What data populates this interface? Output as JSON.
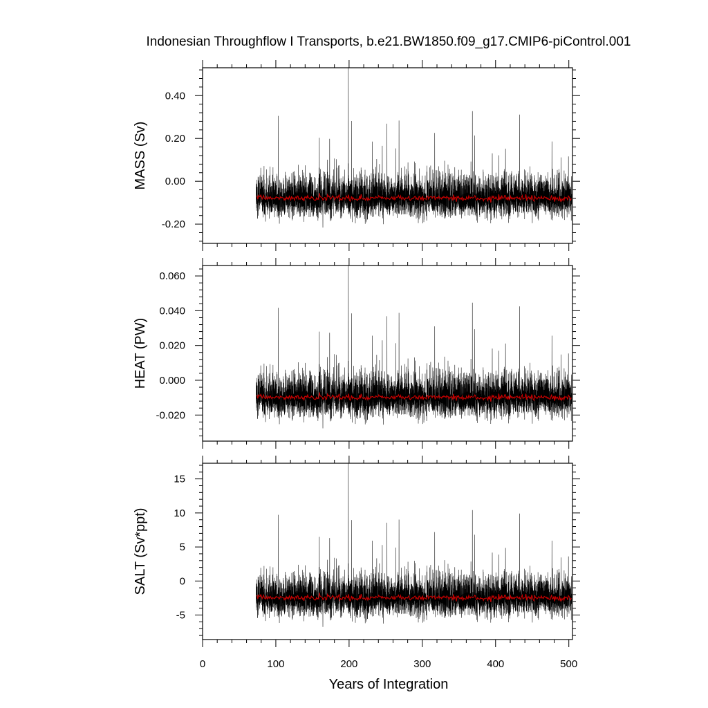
{
  "title": "Indonesian Throughflow I Transports, b.e21.BW1850.f09_g17.CMIP6-piControl.001",
  "xlabel": "Years of Integration",
  "colors": {
    "raw": "#000000",
    "smoothed": "#cc0000",
    "frame": "#000000"
  },
  "chart_data": [
    {
      "type": "line",
      "panel": "MASS",
      "ylabel": "MASS (Sv)",
      "xlim": [
        0,
        505
      ],
      "ylim": [
        -0.29,
        0.53
      ],
      "yticks": [
        -0.2,
        0.0,
        0.2,
        0.4
      ],
      "yticklabels": [
        "-0.20",
        "0.00",
        "0.20",
        "0.40"
      ],
      "data_x_range": [
        73,
        504
      ],
      "series": [
        {
          "color": "#000000",
          "style": "monthly",
          "mean": -0.08,
          "typical_range": [
            -0.28,
            0.33
          ],
          "peak": {
            "x": 199,
            "y": 0.53
          }
        },
        {
          "color": "#cc0000",
          "style": "annual-mean",
          "mean": -0.08,
          "typical_range": [
            -0.12,
            -0.03
          ]
        }
      ]
    },
    {
      "type": "line",
      "panel": "HEAT",
      "ylabel": "HEAT (PW)",
      "xlim": [
        0,
        505
      ],
      "ylim": [
        -0.035,
        0.066
      ],
      "yticks": [
        -0.02,
        0.0,
        0.02,
        0.04,
        0.06
      ],
      "yticklabels": [
        "-0.020",
        "0.000",
        "0.020",
        "0.040",
        "0.060"
      ],
      "data_x_range": [
        73,
        504
      ],
      "series": [
        {
          "color": "#000000",
          "style": "monthly",
          "mean": -0.01,
          "typical_range": [
            -0.034,
            0.045
          ],
          "peak": {
            "x": 199,
            "y": 0.066
          }
        },
        {
          "color": "#cc0000",
          "style": "annual-mean",
          "mean": -0.01,
          "typical_range": [
            -0.015,
            -0.005
          ]
        }
      ]
    },
    {
      "type": "line",
      "panel": "SALT",
      "ylabel": "SALT (Sv*ppt)",
      "xlim": [
        0,
        505
      ],
      "ylim": [
        -8.6,
        17.3
      ],
      "yticks": [
        -5,
        0,
        5,
        10,
        15
      ],
      "yticklabels": [
        "-5",
        "0",
        "5",
        "10",
        "15"
      ],
      "data_x_range": [
        73,
        504
      ],
      "series": [
        {
          "color": "#000000",
          "style": "monthly",
          "mean": -2.5,
          "typical_range": [
            -8.5,
            10.5
          ],
          "peak": {
            "x": 199,
            "y": 17.3
          }
        },
        {
          "color": "#cc0000",
          "style": "annual-mean",
          "mean": -2.5,
          "typical_range": [
            -3.8,
            -1.0
          ]
        }
      ]
    }
  ],
  "xaxis": {
    "ticks": [
      0,
      100,
      200,
      300,
      400,
      500
    ],
    "ticklabels": [
      "0",
      "100",
      "200",
      "300",
      "400",
      "500"
    ]
  }
}
